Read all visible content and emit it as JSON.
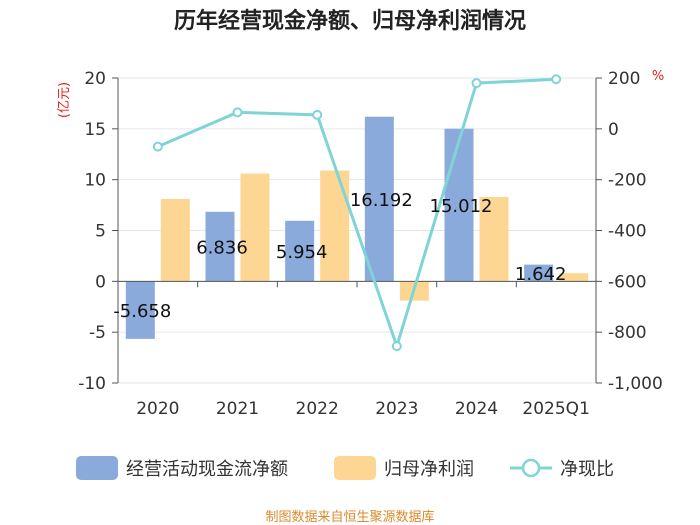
{
  "colors": {
    "cashflow": "#8aaadb",
    "profit": "#fdd694",
    "ratio": "#7fd4d6",
    "axis": "#555555",
    "grid": "#e6e6e6",
    "unit": "#e0201c",
    "source": "#d98a2b"
  },
  "chart_data": {
    "type": "bar",
    "title": "历年经营现金净额、归母净利润情况",
    "categories": [
      "2020",
      "2021",
      "2022",
      "2023",
      "2024",
      "2025Q1"
    ],
    "left_axis": {
      "label": "(亿元)",
      "ylim": [
        -10,
        20
      ],
      "ticks": [
        20,
        15,
        10,
        5,
        0,
        -5,
        -10
      ],
      "tick_labels": [
        "20",
        "15",
        "10",
        "5",
        "0",
        "-5",
        "-10"
      ]
    },
    "right_axis": {
      "label": "%",
      "ylim": [
        -1000,
        200
      ],
      "ticks": [
        200,
        0,
        -200,
        -400,
        -600,
        -800,
        -1000
      ],
      "tick_labels": [
        "200",
        "0",
        "-200",
        "-400",
        "-600",
        "-800",
        "-1,000"
      ]
    },
    "series": [
      {
        "name": "经营活动现金流净额",
        "type": "bar",
        "axis": "left",
        "values": [
          -5.658,
          6.836,
          5.954,
          16.192,
          15.012,
          1.642
        ],
        "data_labels": [
          "-5.658",
          "6.836",
          "5.954",
          "16.192",
          "15.012",
          "1.642"
        ]
      },
      {
        "name": "归母净利润",
        "type": "bar",
        "axis": "left",
        "values": [
          8.1,
          10.6,
          10.9,
          -1.9,
          8.3,
          0.8
        ]
      },
      {
        "name": "净现比",
        "type": "line",
        "axis": "right",
        "values": [
          -70,
          65,
          55,
          -855,
          180,
          195
        ]
      }
    ],
    "legend_position": "bottom",
    "source": "制图数据来自恒生聚源数据库"
  }
}
